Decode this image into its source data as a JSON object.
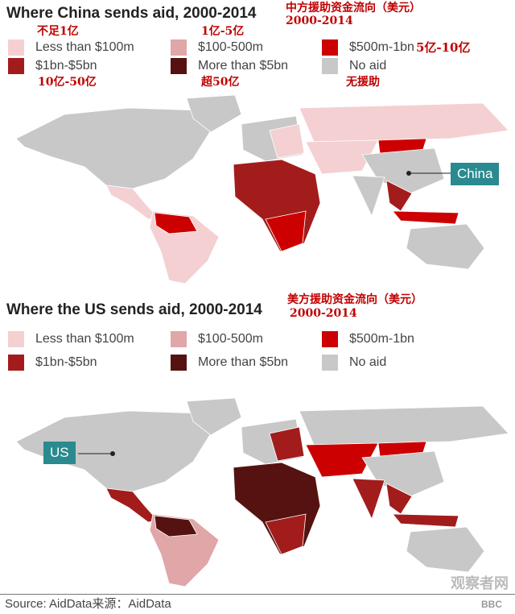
{
  "colors": {
    "lt100m": "#f4d0d2",
    "100_500m": "#e0a6a8",
    "500m_1bn": "#cc0000",
    "1bn_5bn": "#a31c1c",
    "gt5bn": "#561210",
    "none": "#c8c8c8",
    "callout": "#2a8a8f",
    "annotation": "#c00000"
  },
  "china_map": {
    "title": "Where China sends aid, 2000-2014",
    "title_cn": "中方援助资金流向（美元）",
    "title_cn_years": "2000-2014",
    "legend": [
      {
        "key": "lt100m",
        "label": "Less than $100m",
        "cn": "不足1亿"
      },
      {
        "key": "100_500m",
        "label": "$100-500m",
        "cn": "1亿-5亿"
      },
      {
        "key": "500m_1bn",
        "label": "$500m-1bn",
        "cn": "5亿-10亿"
      },
      {
        "key": "1bn_5bn",
        "label": "$1bn-$5bn",
        "cn": "10亿-50亿"
      },
      {
        "key": "gt5bn",
        "label": "More than $5bn",
        "cn": "超50亿"
      },
      {
        "key": "none",
        "label": "No aid",
        "cn": "无援助"
      }
    ],
    "callout": "China",
    "regions": {
      "north_america": "none",
      "greenland": "none",
      "central_america": "lt100m",
      "south_america": "lt100m",
      "south_america_north": "500m_1bn",
      "europe": "none",
      "eastern_europe": "lt100m",
      "africa": "1bn_5bn",
      "africa_south": "500m_1bn",
      "russia": "lt100m",
      "central_asia": "lt100m",
      "china": "none",
      "mongolia": "500m_1bn",
      "india": "none",
      "southeast_asia": "1bn_5bn",
      "indonesia": "500m_1bn",
      "australia": "none"
    }
  },
  "us_map": {
    "title": "Where the US sends aid, 2000-2014",
    "title_cn": "美方援助资金流向（美元）",
    "title_cn_years": "2000-2014",
    "legend": [
      {
        "key": "lt100m",
        "label": "Less than $100m"
      },
      {
        "key": "100_500m",
        "label": "$100-500m"
      },
      {
        "key": "500m_1bn",
        "label": "$500m-1bn"
      },
      {
        "key": "1bn_5bn",
        "label": "$1bn-$5bn"
      },
      {
        "key": "gt5bn",
        "label": "More than $5bn"
      },
      {
        "key": "none",
        "label": "No aid"
      }
    ],
    "callout": "US",
    "regions": {
      "north_america": "none",
      "greenland": "none",
      "central_america": "1bn_5bn",
      "south_america": "100_500m",
      "south_america_north": "gt5bn",
      "europe": "none",
      "eastern_europe": "1bn_5bn",
      "africa": "gt5bn",
      "africa_south": "1bn_5bn",
      "russia": "none",
      "central_asia": "500m_1bn",
      "china": "none",
      "mongolia": "500m_1bn",
      "india": "1bn_5bn",
      "southeast_asia": "1bn_5bn",
      "indonesia": "1bn_5bn",
      "australia": "none"
    }
  },
  "footer": {
    "source": "Source: AidData来源：AidData",
    "watermark": "观察者网",
    "watermark_url": "www.guancha.cn",
    "logo": "BBC"
  }
}
